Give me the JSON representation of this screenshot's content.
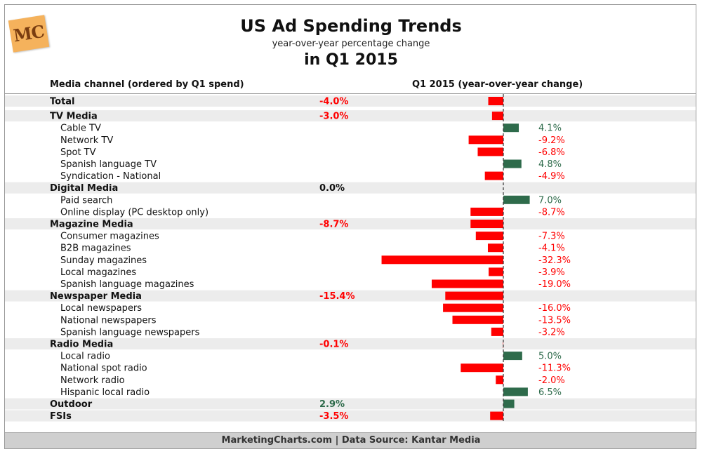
{
  "header": {
    "title": "US Ad Spending Trends",
    "subtitle": "year-over-year percentage change",
    "title2": "in Q1 2015",
    "logo_text": "MC"
  },
  "column_headers": {
    "left": "Media channel (ordered by Q1 spend)",
    "right": "Q1 2015 (year-over-year change)"
  },
  "footer": "MarketingCharts.com | Data Source: Kantar Media",
  "colors": {
    "negative": "#ff0000",
    "positive": "#2e6b4b",
    "band": "#ececec",
    "axis": "#333333"
  },
  "chart_data": {
    "type": "bar",
    "orientation": "horizontal",
    "title": "US Ad Spending Trends",
    "subtitle": "year-over-year percentage change",
    "xlabel": "Q1 2015 (year-over-year change)",
    "ylabel": "Media channel (ordered by Q1 spend)",
    "unit": "%",
    "rows": [
      {
        "label": "Total",
        "value": -4.0,
        "display": "-4.0%",
        "level": "group"
      },
      {
        "label": "TV Media",
        "value": -3.0,
        "display": "-3.0%",
        "level": "group"
      },
      {
        "label": "Cable TV",
        "value": 4.1,
        "display": "4.1%",
        "level": "sub"
      },
      {
        "label": "Network TV",
        "value": -9.2,
        "display": "-9.2%",
        "level": "sub"
      },
      {
        "label": "Spot TV",
        "value": -6.8,
        "display": "-6.8%",
        "level": "sub"
      },
      {
        "label": "Spanish language TV",
        "value": 4.8,
        "display": "4.8%",
        "level": "sub"
      },
      {
        "label": "Syndication - National",
        "value": -4.9,
        "display": "-4.9%",
        "level": "sub"
      },
      {
        "label": "Digital Media",
        "value": 0.0,
        "display": "0.0%",
        "level": "group"
      },
      {
        "label": "Paid search",
        "value": 7.0,
        "display": "7.0%",
        "level": "sub"
      },
      {
        "label": "Online display (PC desktop only)",
        "value": -8.7,
        "display": "-8.7%",
        "level": "sub"
      },
      {
        "label": "Magazine Media",
        "value": -8.7,
        "display": "-8.7%",
        "level": "group"
      },
      {
        "label": "Consumer magazines",
        "value": -7.3,
        "display": "-7.3%",
        "level": "sub"
      },
      {
        "label": "B2B magazines",
        "value": -4.1,
        "display": "-4.1%",
        "level": "sub"
      },
      {
        "label": "Sunday magazines",
        "value": -32.3,
        "display": "-32.3%",
        "level": "sub"
      },
      {
        "label": "Local magazines",
        "value": -3.9,
        "display": "-3.9%",
        "level": "sub"
      },
      {
        "label": "Spanish language magazines",
        "value": -19.0,
        "display": "-19.0%",
        "level": "sub"
      },
      {
        "label": "Newspaper Media",
        "value": -15.4,
        "display": "-15.4%",
        "level": "group"
      },
      {
        "label": "Local newspapers",
        "value": -16.0,
        "display": "-16.0%",
        "level": "sub"
      },
      {
        "label": "National newspapers",
        "value": -13.5,
        "display": "-13.5%",
        "level": "sub"
      },
      {
        "label": "Spanish language newspapers",
        "value": -3.2,
        "display": "-3.2%",
        "level": "sub"
      },
      {
        "label": "Radio Media",
        "value": -0.1,
        "display": "-0.1%",
        "level": "group"
      },
      {
        "label": "Local radio",
        "value": 5.0,
        "display": "5.0%",
        "level": "sub"
      },
      {
        "label": "National spot radio",
        "value": -11.3,
        "display": "-11.3%",
        "level": "sub"
      },
      {
        "label": "Network radio",
        "value": -2.0,
        "display": "-2.0%",
        "level": "sub"
      },
      {
        "label": "Hispanic local radio",
        "value": 6.5,
        "display": "6.5%",
        "level": "sub"
      },
      {
        "label": "Outdoor",
        "value": 2.9,
        "display": "2.9%",
        "level": "group"
      },
      {
        "label": "FSIs",
        "value": -3.5,
        "display": "-3.5%",
        "level": "group"
      }
    ]
  }
}
